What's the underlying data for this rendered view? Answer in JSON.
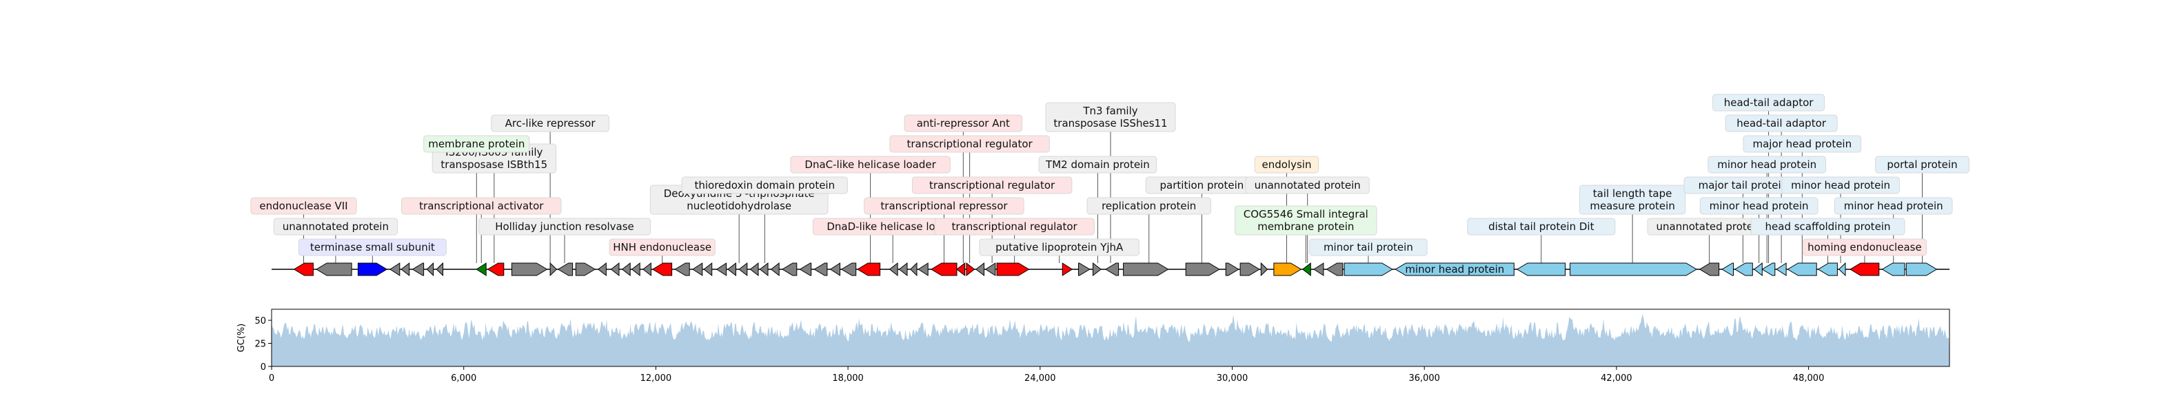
{
  "genome_length": 52400,
  "gc_axis": {
    "label": "GC(%)",
    "ticks": [
      0,
      25,
      50
    ],
    "max": 62
  },
  "x_ticks": [
    "0",
    "6,000",
    "12,000",
    "18,000",
    "24,000",
    "30,000",
    "36,000",
    "42,000",
    "48,000"
  ],
  "x_tick_values": [
    0,
    6000,
    12000,
    18000,
    24000,
    30000,
    36000,
    42000,
    48000
  ],
  "colors": {
    "red": "#ff0000",
    "gray": "#808080",
    "blue": "#0000ff",
    "green": "#008000",
    "orange": "#ffa500",
    "lightblue": "#87ceeb",
    "gc_fill": "#b0cde4",
    "box_red": "#fde3e3",
    "box_gray": "#efefef",
    "box_green": "#e5f7e5",
    "box_blue": "#e3f0f8",
    "box_orange": "#fff0da",
    "box_lavender": "#e6e6ff"
  },
  "genes": [
    {
      "s": 700,
      "e": 1300,
      "st": -1,
      "c": "red"
    },
    {
      "s": 1400,
      "e": 2500,
      "st": -1,
      "c": "gray"
    },
    {
      "s": 2700,
      "e": 3600,
      "st": 1,
      "c": "blue"
    },
    {
      "s": 3700,
      "e": 4000,
      "st": -1,
      "c": "gray"
    },
    {
      "s": 4050,
      "e": 4300,
      "st": -1,
      "c": "gray"
    },
    {
      "s": 4400,
      "e": 4750,
      "st": -1,
      "c": "gray"
    },
    {
      "s": 4850,
      "e": 5050,
      "st": -1,
      "c": "gray"
    },
    {
      "s": 5150,
      "e": 5350,
      "st": -1,
      "c": "gray"
    },
    {
      "s": 6400,
      "e": 6700,
      "st": -1,
      "c": "green"
    },
    {
      "s": 6750,
      "e": 7250,
      "st": -1,
      "c": "red"
    },
    {
      "s": 7500,
      "e": 8600,
      "st": 1,
      "c": "gray"
    },
    {
      "s": 8700,
      "e": 8900,
      "st": 1,
      "c": "gray"
    },
    {
      "s": 8950,
      "e": 9400,
      "st": -1,
      "c": "gray"
    },
    {
      "s": 9500,
      "e": 10100,
      "st": 1,
      "c": "gray"
    },
    {
      "s": 10200,
      "e": 10450,
      "st": -1,
      "c": "gray"
    },
    {
      "s": 10600,
      "e": 10850,
      "st": -1,
      "c": "gray"
    },
    {
      "s": 10950,
      "e": 11200,
      "st": -1,
      "c": "gray"
    },
    {
      "s": 11250,
      "e": 11500,
      "st": -1,
      "c": "gray"
    },
    {
      "s": 11600,
      "e": 11850,
      "st": -1,
      "c": "gray"
    },
    {
      "s": 11900,
      "e": 12500,
      "st": -1,
      "c": "red"
    },
    {
      "s": 12600,
      "e": 13050,
      "st": -1,
      "c": "gray"
    },
    {
      "s": 13150,
      "e": 13450,
      "st": -1,
      "c": "gray"
    },
    {
      "s": 13500,
      "e": 13750,
      "st": -1,
      "c": "gray"
    },
    {
      "s": 13900,
      "e": 14200,
      "st": -1,
      "c": "gray"
    },
    {
      "s": 14250,
      "e": 14500,
      "st": -1,
      "c": "gray"
    },
    {
      "s": 14600,
      "e": 14850,
      "st": -1,
      "c": "gray"
    },
    {
      "s": 14950,
      "e": 15200,
      "st": -1,
      "c": "gray"
    },
    {
      "s": 15250,
      "e": 15500,
      "st": -1,
      "c": "gray"
    },
    {
      "s": 15600,
      "e": 15850,
      "st": -1,
      "c": "gray"
    },
    {
      "s": 15950,
      "e": 16400,
      "st": -1,
      "c": "gray"
    },
    {
      "s": 16500,
      "e": 16850,
      "st": -1,
      "c": "gray"
    },
    {
      "s": 16950,
      "e": 17350,
      "st": -1,
      "c": "gray"
    },
    {
      "s": 17450,
      "e": 17750,
      "st": -1,
      "c": "gray"
    },
    {
      "s": 17800,
      "e": 18250,
      "st": -1,
      "c": "gray"
    },
    {
      "s": 18300,
      "e": 19000,
      "st": -1,
      "c": "red"
    },
    {
      "s": 19300,
      "e": 19550,
      "st": -1,
      "c": "gray"
    },
    {
      "s": 19600,
      "e": 19850,
      "st": -1,
      "c": "gray"
    },
    {
      "s": 19950,
      "e": 20150,
      "st": -1,
      "c": "gray"
    },
    {
      "s": 20200,
      "e": 20500,
      "st": -1,
      "c": "gray"
    },
    {
      "s": 20600,
      "e": 21400,
      "st": -1,
      "c": "red"
    },
    {
      "s": 21400,
      "e": 21650,
      "st": -1,
      "c": "red"
    },
    {
      "s": 21700,
      "e": 21950,
      "st": 1,
      "c": "red"
    },
    {
      "s": 22000,
      "e": 22250,
      "st": -1,
      "c": "gray"
    },
    {
      "s": 22300,
      "e": 22600,
      "st": -1,
      "c": "gray"
    },
    {
      "s": 22650,
      "e": 23650,
      "st": 1,
      "c": "red"
    },
    {
      "s": 24700,
      "e": 25000,
      "st": 1,
      "c": "red"
    },
    {
      "s": 25200,
      "e": 25550,
      "st": 1,
      "c": "gray"
    },
    {
      "s": 25650,
      "e": 25900,
      "st": 1,
      "c": "gray"
    },
    {
      "s": 26050,
      "e": 26450,
      "st": -1,
      "c": "gray"
    },
    {
      "s": 26600,
      "e": 28000,
      "st": 1,
      "c": "gray"
    },
    {
      "s": 28550,
      "e": 29600,
      "st": 1,
      "c": "gray"
    },
    {
      "s": 29800,
      "e": 30200,
      "st": 1,
      "c": "gray"
    },
    {
      "s": 30250,
      "e": 30850,
      "st": 1,
      "c": "gray"
    },
    {
      "s": 30900,
      "e": 31100,
      "st": 1,
      "c": "gray"
    },
    {
      "s": 31300,
      "e": 32150,
      "st": 1,
      "c": "orange"
    },
    {
      "s": 32200,
      "e": 32450,
      "st": -1,
      "c": "green"
    },
    {
      "s": 32550,
      "e": 32850,
      "st": -1,
      "c": "gray"
    },
    {
      "s": 32950,
      "e": 33450,
      "st": -1,
      "c": "gray"
    },
    {
      "s": 33500,
      "e": 35000,
      "st": 1,
      "c": "lightblue"
    },
    {
      "s": 35100,
      "e": 38800,
      "st": -1,
      "c": "lightblue"
    },
    {
      "s": 38900,
      "e": 40400,
      "st": -1,
      "c": "lightblue"
    },
    {
      "s": 40550,
      "e": 44500,
      "st": 1,
      "c": "lightblue"
    },
    {
      "s": 44600,
      "e": 45200,
      "st": -1,
      "c": "gray"
    },
    {
      "s": 45300,
      "e": 45650,
      "st": -1,
      "c": "lightblue"
    },
    {
      "s": 45700,
      "e": 46250,
      "st": -1,
      "c": "lightblue"
    },
    {
      "s": 46300,
      "e": 46550,
      "st": -1,
      "c": "lightblue"
    },
    {
      "s": 46550,
      "e": 46950,
      "st": -1,
      "c": "lightblue"
    },
    {
      "s": 47000,
      "e": 47300,
      "st": -1,
      "c": "lightblue"
    },
    {
      "s": 47350,
      "e": 48250,
      "st": -1,
      "c": "lightblue"
    },
    {
      "s": 48300,
      "e": 48900,
      "st": -1,
      "c": "lightblue"
    },
    {
      "s": 48950,
      "e": 49150,
      "st": -1,
      "c": "lightblue"
    },
    {
      "s": 49300,
      "e": 50200,
      "st": -1,
      "c": "red"
    },
    {
      "s": 50300,
      "e": 51000,
      "st": -1,
      "c": "lightblue"
    },
    {
      "s": 51050,
      "e": 52000,
      "st": 1,
      "c": "lightblue"
    }
  ],
  "labels": [
    {
      "text": "endonuclease VII",
      "gx": 1000,
      "tier": 3,
      "box": "box_red"
    },
    {
      "text": "unannotated protein",
      "gx": 2000,
      "tier": 2,
      "box": "box_gray"
    },
    {
      "text": "terminase small subunit",
      "gx": 3150,
      "tier": 1,
      "box": "box_lavender"
    },
    {
      "text": "transcriptional activator",
      "gx": 6550,
      "tier": 3,
      "box": "box_red"
    },
    {
      "text": "IS200/IS605 family\ntransposase ISBth15",
      "gx": 6950,
      "tier": 5,
      "box": "box_gray"
    },
    {
      "text": "membrane protein",
      "gx": 6400,
      "tier": 6,
      "box": "box_green"
    },
    {
      "text": "Arc-like repressor",
      "gx": 8700,
      "tier": 7,
      "box": "box_gray"
    },
    {
      "text": "Holliday junction resolvase",
      "gx": 9150,
      "tier": 2,
      "box": "box_gray"
    },
    {
      "text": "HNH endonuclease",
      "gx": 12200,
      "tier": 1,
      "box": "box_red"
    },
    {
      "text": "Deoxyuridine 5'-triphosphate\nnucleotidohydrolase",
      "gx": 14600,
      "tier": 3,
      "box": "box_gray"
    },
    {
      "text": "thioredoxin domain protein",
      "gx": 15400,
      "tier": 4,
      "box": "box_gray"
    },
    {
      "text": "DnaC-like helicase loader",
      "gx": 18700,
      "tier": 5,
      "box": "box_red"
    },
    {
      "text": "DnaD-like helicase loader",
      "gx": 19400,
      "tier": 2,
      "box": "box_red"
    },
    {
      "text": "anti-repressor Ant",
      "gx": 21600,
      "tier": 7,
      "box": "box_red"
    },
    {
      "text": "transcriptional regulator",
      "gx": 21800,
      "tier": 6,
      "box": "box_red"
    },
    {
      "text": "transcriptional repressor",
      "gx": 21000,
      "tier": 3,
      "box": "box_red"
    },
    {
      "text": "transcriptional regulator",
      "gx": 22500,
      "tier": 4,
      "box": "box_red"
    },
    {
      "text": "transcriptional regulator",
      "gx": 23200,
      "tier": 2,
      "box": "box_red"
    },
    {
      "text": "putative lipoprotein YjhA",
      "gx": 24600,
      "tier": 1,
      "box": "box_gray"
    },
    {
      "text": "TM2 domain protein",
      "gx": 25800,
      "tier": 5,
      "box": "box_gray"
    },
    {
      "text": "Tn3 family\ntransposase ISShes11",
      "gx": 26200,
      "tier": 7,
      "box": "box_gray"
    },
    {
      "text": "replication protein",
      "gx": 27400,
      "tier": 3,
      "box": "box_gray"
    },
    {
      "text": "partition protein",
      "gx": 29050,
      "tier": 4,
      "box": "box_gray"
    },
    {
      "text": "endolysin",
      "gx": 31700,
      "tier": 5,
      "box": "box_orange"
    },
    {
      "text": "unannotated protein",
      "gx": 32350,
      "tier": 4,
      "box": "box_gray"
    },
    {
      "text": "COG5546 Small integral\nmembrane protein",
      "gx": 32300,
      "tier": 2,
      "box": "box_green"
    },
    {
      "text": "minor tail protein",
      "gx": 34250,
      "tier": 1,
      "box": "box_blue"
    },
    {
      "text": "distal tail protein Dit",
      "gx": 39650,
      "tier": 2,
      "box": "box_blue"
    },
    {
      "text": "tail length tape\nmeasure protein",
      "gx": 42500,
      "tier": 3,
      "box": "box_blue"
    },
    {
      "text": "unannotated protein",
      "gx": 44900,
      "tier": 2,
      "box": "box_gray"
    },
    {
      "text": "major tail protein",
      "gx": 45950,
      "tier": 4,
      "box": "box_blue"
    },
    {
      "text": "minor head protein",
      "gx": 46450,
      "tier": 3,
      "box": "box_blue"
    },
    {
      "text": "minor head protein",
      "gx": 46700,
      "tier": 5,
      "box": "box_blue"
    },
    {
      "text": "head-tail adaptor",
      "gx": 46750,
      "tier": 8,
      "box": "box_blue"
    },
    {
      "text": "head-tail adaptor",
      "gx": 47150,
      "tier": 7,
      "box": "box_blue"
    },
    {
      "text": "major head protein",
      "gx": 47800,
      "tier": 6,
      "box": "box_blue"
    },
    {
      "text": "head scaffolding protein",
      "gx": 48600,
      "tier": 2,
      "box": "box_blue"
    },
    {
      "text": "minor head protein",
      "gx": 49000,
      "tier": 4,
      "box": "box_blue"
    },
    {
      "text": "homing endonuclease",
      "gx": 49750,
      "tier": 1,
      "box": "box_red"
    },
    {
      "text": "minor head protein",
      "gx": 50650,
      "tier": 3,
      "box": "box_blue"
    },
    {
      "text": "portal protein",
      "gx": 51550,
      "tier": 5,
      "box": "box_blue"
    }
  ],
  "inline_labels": [
    {
      "text": "minor head protein",
      "gx": 36950
    }
  ]
}
